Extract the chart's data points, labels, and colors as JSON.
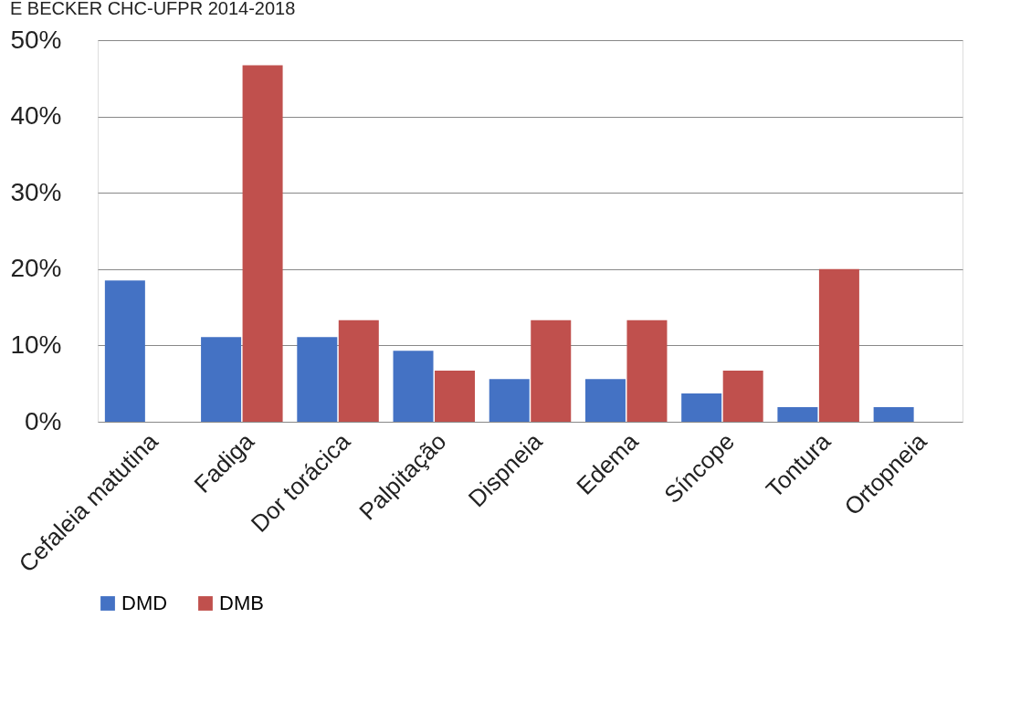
{
  "chart_data": {
    "type": "bar",
    "title": "E BECKER CHC-UFPR 2014-2018",
    "categories": [
      "Cefaleia matutina",
      "Fadiga",
      "Dor torácica",
      "Palpitação",
      "Dispneia",
      "Edema",
      "Síncope",
      "Tontura",
      "Ortopneia"
    ],
    "series": [
      {
        "name": "DMD",
        "color": "#4472c4",
        "values": [
          18.5,
          11.1,
          11.1,
          9.3,
          5.6,
          5.6,
          3.7,
          1.9,
          1.9
        ]
      },
      {
        "name": "DMB",
        "color": "#c0504d",
        "values": [
          null,
          46.7,
          13.3,
          6.7,
          13.3,
          13.3,
          6.7,
          20.0,
          null
        ]
      }
    ],
    "ylim": [
      0,
      50
    ],
    "yticks": [
      {
        "value": 0,
        "label": "0%"
      },
      {
        "value": 10,
        "label": "10%"
      },
      {
        "value": 20,
        "label": "20%"
      },
      {
        "value": 30,
        "label": "30%"
      },
      {
        "value": 40,
        "label": "40%"
      },
      {
        "value": 50,
        "label": "50%"
      }
    ],
    "grid": "y",
    "legend": "bottom"
  }
}
